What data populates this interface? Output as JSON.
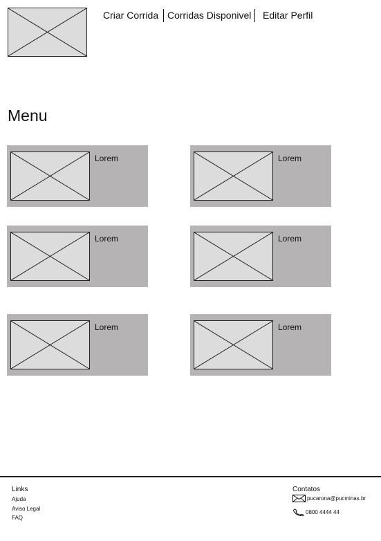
{
  "nav": {
    "items": [
      {
        "label": "Criar Corrida"
      },
      {
        "label": "Corridas Disponivel"
      },
      {
        "label": "Editar Perfil"
      }
    ]
  },
  "main": {
    "title": "Menu",
    "cards": [
      {
        "label": "Lorem"
      },
      {
        "label": "Lorem"
      },
      {
        "label": "Lorem"
      },
      {
        "label": "Lorem"
      },
      {
        "label": "Lorem"
      },
      {
        "label": "Lorem"
      }
    ]
  },
  "footer": {
    "links_heading": "Links",
    "links": [
      {
        "label": "Ajuda"
      },
      {
        "label": "Aviso Legal"
      },
      {
        "label": "FAQ"
      }
    ],
    "contacts_heading": "Contatos",
    "email": "pucarona@pucminas.br",
    "phone": "0800 4444 44",
    "icons": {
      "email": "envelope-icon",
      "phone": "phone-icon"
    }
  },
  "colors": {
    "card_background": "#b5b3b3",
    "placeholder_fill": "#dcdcdc",
    "line": "#222222"
  }
}
